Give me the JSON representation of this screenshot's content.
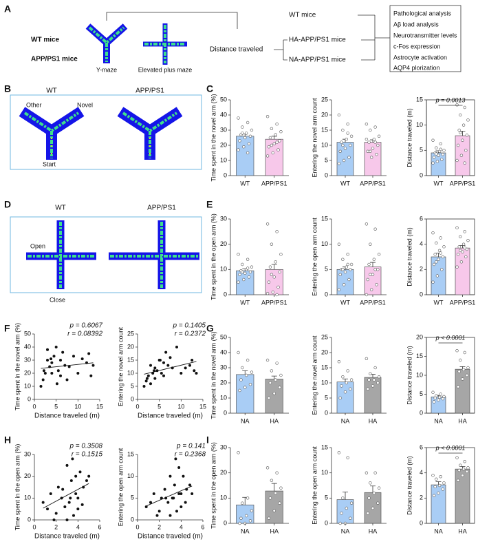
{
  "panel_labels": [
    "A",
    "B",
    "C",
    "D",
    "E",
    "F",
    "G",
    "H",
    "I"
  ],
  "diagram": {
    "mouse_groups": [
      "WT mice",
      "APP/PS1 mice"
    ],
    "tests": [
      "Y-maze",
      "Elevated plus maze"
    ],
    "measure": "Distance traveled",
    "subgroups": [
      "WT mice",
      "HA-APP/PS1 mice",
      "NA-APP/PS1 mice"
    ],
    "analyses": [
      "Pathological analysis",
      "Aβ load analysis",
      "Neurotransmitter levels",
      "c-Fos expression",
      "Astrocyte activation",
      "AQP4 plorization"
    ]
  },
  "heatmaps": {
    "B": {
      "groups": [
        "WT",
        "APP/PS1"
      ],
      "arms": [
        "Other",
        "Novel",
        "Start"
      ]
    },
    "D": {
      "groups": [
        "WT",
        "APP/PS1"
      ],
      "arms": [
        "Open",
        "Close"
      ]
    }
  },
  "chart_data": [
    {
      "type": "bar",
      "ylabel": "Time spent in the novel arm (%)",
      "categories": [
        "WT",
        "APP/PS1"
      ],
      "colors": [
        "#a9cdf5",
        "#f7c8ea"
      ],
      "values": [
        26,
        24
      ],
      "errors": [
        1.5,
        2
      ],
      "ylim": [
        0,
        50
      ],
      "yticks": [
        0,
        10,
        20,
        30,
        40,
        50
      ],
      "points": [
        [
          38,
          35,
          32,
          30,
          28,
          27,
          26,
          25,
          23,
          21,
          19,
          17,
          15,
          28
        ],
        [
          39,
          34,
          31,
          29,
          27,
          25,
          23,
          21,
          19,
          17,
          15,
          13,
          22,
          20
        ]
      ]
    },
    {
      "type": "bar",
      "ylabel": "Entering the novel arm count",
      "categories": [
        "WT",
        "APP/PS1"
      ],
      "colors": [
        "#a9cdf5",
        "#f7c8ea"
      ],
      "values": [
        11,
        11
      ],
      "errors": [
        1,
        0.8
      ],
      "ylim": [
        0,
        25
      ],
      "yticks": [
        0,
        5,
        10,
        15,
        20,
        25
      ],
      "points": [
        [
          20,
          17,
          15,
          13,
          12,
          11,
          10,
          9,
          8,
          6,
          5,
          4,
          14,
          10
        ],
        [
          17,
          16,
          15,
          13,
          12,
          11,
          10,
          9,
          8,
          7,
          6,
          12,
          11,
          8
        ]
      ]
    },
    {
      "type": "bar",
      "ylabel": "Distance traveled (m)",
      "categories": [
        "WT",
        "APP/PS1"
      ],
      "colors": [
        "#a9cdf5",
        "#f7c8ea"
      ],
      "values": [
        4.5,
        7.9
      ],
      "errors": [
        0.4,
        0.9
      ],
      "ylim": [
        0,
        15
      ],
      "yticks": [
        0,
        5,
        10,
        15
      ],
      "frame": true,
      "annotation": "p = 0.0013",
      "points": [
        [
          7,
          6.3,
          5.5,
          5,
          4.8,
          4.5,
          4.2,
          4,
          3.6,
          3.2,
          2.8,
          2.5,
          5.2,
          4.3
        ],
        [
          14,
          13.5,
          12,
          11,
          10,
          9,
          8,
          7,
          6,
          5,
          4,
          3,
          2.5,
          8.5
        ]
      ]
    },
    {
      "type": "bar",
      "ylabel": "Time spent in the open arm (%)",
      "categories": [
        "WT",
        "APP/PS1"
      ],
      "colors": [
        "#a9cdf5",
        "#f7c8ea"
      ],
      "values": [
        9.5,
        10
      ],
      "errors": [
        0.8,
        2
      ],
      "ylim": [
        0,
        30
      ],
      "yticks": [
        0,
        10,
        20,
        30
      ],
      "points": [
        [
          16,
          14,
          12,
          11,
          10,
          9.5,
          9,
          8.5,
          8,
          7,
          6,
          5,
          10.5,
          9
        ],
        [
          28,
          25,
          20,
          16,
          13,
          11,
          9,
          7,
          5,
          3,
          1,
          0.5,
          0,
          8
        ]
      ]
    },
    {
      "type": "bar",
      "ylabel": "Entering the open arm count",
      "categories": [
        "WT",
        "APP/PS1"
      ],
      "colors": [
        "#a9cdf5",
        "#f7c8ea"
      ],
      "values": [
        5,
        5.5
      ],
      "errors": [
        0.5,
        0.9
      ],
      "ylim": [
        0,
        15
      ],
      "yticks": [
        0,
        5,
        10,
        15
      ],
      "points": [
        [
          10,
          8,
          7,
          6,
          5.5,
          5,
          5,
          4.5,
          4,
          3,
          2,
          1,
          6,
          5
        ],
        [
          14,
          13,
          10,
          8,
          7,
          6,
          5,
          4,
          3,
          2,
          1,
          0,
          5,
          4
        ]
      ]
    },
    {
      "type": "bar",
      "ylabel": "Distance traveled (m)",
      "categories": [
        "WT",
        "APP/PS1"
      ],
      "colors": [
        "#a9cdf5",
        "#f7c8ea"
      ],
      "values": [
        3,
        3.7
      ],
      "errors": [
        0.3,
        0.2
      ],
      "ylim": [
        0,
        6
      ],
      "yticks": [
        0,
        2,
        4,
        6
      ],
      "frame": true,
      "points": [
        [
          4.9,
          4.5,
          4.1,
          3.8,
          3.5,
          3.2,
          3,
          2.8,
          2.4,
          2,
          1.5,
          1,
          3.3,
          2.6
        ],
        [
          5.3,
          5,
          4.6,
          4.3,
          4,
          3.8,
          3.6,
          3.4,
          3.2,
          3,
          2.6,
          2.2,
          3.7,
          3.5
        ]
      ]
    },
    {
      "type": "scatter",
      "xlabel": "Distance traveled (m)",
      "ylabel": "Time spent in the novel arm (%)",
      "annotations": [
        "p = 0.6067",
        "r = 0.08392"
      ],
      "xlim": [
        0,
        15
      ],
      "xticks": [
        0,
        5,
        10,
        15
      ],
      "ylim": [
        0,
        50
      ],
      "yticks": [
        0,
        10,
        20,
        30,
        40,
        50
      ],
      "x": [
        1.5,
        2,
        2.5,
        3,
        3,
        3.5,
        4,
        4,
        4.5,
        5,
        5.5,
        6,
        6,
        6.5,
        7,
        7.5,
        8,
        9,
        10,
        11,
        12,
        12.5,
        13,
        13.5,
        2.2,
        3.8,
        5.2
      ],
      "y": [
        10,
        15,
        20,
        30,
        38,
        25,
        20,
        28,
        33,
        40,
        22,
        30,
        18,
        36,
        26,
        15,
        25,
        33,
        20,
        31,
        28,
        35,
        18,
        26,
        22,
        31,
        12
      ]
    },
    {
      "type": "scatter",
      "xlabel": "Distance traveled (m)",
      "ylabel": "Entering the novel arm count",
      "annotations": [
        "p = 0.1405",
        "r = 0.2372"
      ],
      "xlim": [
        0,
        15
      ],
      "xticks": [
        0,
        5,
        10,
        15
      ],
      "ylim": [
        0,
        25
      ],
      "yticks": [
        0,
        5,
        10,
        15,
        20,
        25
      ],
      "x": [
        1.5,
        2,
        2.5,
        3,
        3,
        3.5,
        4,
        4,
        4.5,
        5,
        5.5,
        6,
        6,
        6.5,
        7,
        7.5,
        8,
        9,
        10,
        11,
        12,
        12.5,
        13,
        13.5,
        2.2,
        3.8,
        5.2
      ],
      "y": [
        5,
        7,
        9,
        13,
        6,
        10,
        8,
        12,
        11,
        15,
        10,
        14,
        9,
        18,
        13,
        16,
        12,
        20,
        10,
        12,
        13,
        15,
        11,
        10,
        8,
        11,
        15
      ]
    },
    {
      "type": "bar",
      "ylabel": "Time spent in the novel arm (%)",
      "categories": [
        "NA",
        "HA"
      ],
      "colors": [
        "#a9cdf5",
        "#a6a6a6"
      ],
      "values": [
        25.5,
        22.5
      ],
      "errors": [
        2.5,
        2
      ],
      "ylim": [
        0,
        50
      ],
      "yticks": [
        0,
        10,
        20,
        30,
        40,
        50
      ],
      "points": [
        [
          40,
          35,
          30,
          27,
          25,
          22,
          19,
          17,
          15
        ],
        [
          35,
          33,
          28,
          25,
          22,
          20,
          17,
          13,
          10
        ]
      ]
    },
    {
      "type": "bar",
      "ylabel": "Entering the novel arm count",
      "categories": [
        "NA",
        "HA"
      ],
      "colors": [
        "#a9cdf5",
        "#a6a6a6"
      ],
      "values": [
        10.3,
        11.8
      ],
      "errors": [
        1,
        1
      ],
      "ylim": [
        0,
        25
      ],
      "yticks": [
        0,
        5,
        10,
        15,
        20,
        25
      ],
      "points": [
        [
          17,
          14,
          12,
          11,
          10,
          9,
          8,
          7,
          5
        ],
        [
          18,
          15,
          13,
          12,
          11,
          11,
          10,
          9,
          8
        ]
      ]
    },
    {
      "type": "bar",
      "ylabel": "Distance traveled (m)",
      "categories": [
        "NA",
        "HA"
      ],
      "colors": [
        "#a9cdf5",
        "#a6a6a6"
      ],
      "values": [
        4.3,
        11.6
      ],
      "errors": [
        0.4,
        0.7
      ],
      "ylim": [
        0,
        20
      ],
      "yticks": [
        0,
        5,
        10,
        15,
        20
      ],
      "frame": true,
      "annotation": "p < 0.0001",
      "points": [
        [
          5.5,
          5,
          4.6,
          4.4,
          4.2,
          4,
          3.8,
          3.5,
          3
        ],
        [
          16.5,
          16,
          14,
          12,
          11.5,
          11,
          10,
          9,
          7
        ]
      ]
    },
    {
      "type": "scatter",
      "xlabel": "Distance traveled (m)",
      "ylabel": "Time spent in the open arm (%)",
      "annotations": [
        "p = 0.3508",
        "r = 0.1515"
      ],
      "xlim": [
        0,
        6
      ],
      "xticks": [
        0,
        2,
        4,
        6
      ],
      "ylim": [
        0,
        30
      ],
      "yticks": [
        0,
        10,
        20,
        30
      ],
      "x": [
        0.8,
        1.2,
        1.5,
        2,
        2.2,
        2.5,
        2.8,
        3,
        3,
        3.2,
        3.4,
        3.5,
        3.6,
        3.8,
        3.8,
        4,
        4,
        4.2,
        4.4,
        4.5,
        4.8,
        5,
        1.8,
        2.6,
        3.3
      ],
      "y": [
        8,
        5,
        12,
        3,
        15,
        10,
        6,
        25,
        0,
        8,
        18,
        28,
        2,
        12,
        20,
        5,
        10,
        22,
        7,
        15,
        18,
        20,
        0,
        14,
        10
      ]
    },
    {
      "type": "scatter",
      "xlabel": "Distance traveled (m)",
      "ylabel": "Entering the open arm count",
      "annotations": [
        "p = 0.141",
        "r = 0.2368"
      ],
      "xlim": [
        0,
        6
      ],
      "xticks": [
        0,
        2,
        4,
        6
      ],
      "ylim": [
        0,
        15
      ],
      "yticks": [
        0,
        5,
        10,
        15
      ],
      "x": [
        0.8,
        1.2,
        1.5,
        2,
        2.2,
        2.5,
        2.8,
        3,
        3,
        3.2,
        3.4,
        3.5,
        3.6,
        3.8,
        3.8,
        4,
        4,
        4.2,
        4.4,
        4.5,
        4.8,
        5,
        1.8,
        2.6,
        3.3
      ],
      "y": [
        3,
        4,
        6,
        2,
        5,
        7,
        4,
        10,
        1,
        5,
        8,
        14,
        2,
        6,
        12,
        3,
        6,
        10,
        4,
        7,
        8,
        6,
        1,
        5,
        5
      ]
    },
    {
      "type": "bar",
      "ylabel": "Time spent in the open arm (%)",
      "categories": [
        "NA",
        "HA"
      ],
      "colors": [
        "#a9cdf5",
        "#a6a6a6"
      ],
      "values": [
        7.3,
        12.8
      ],
      "errors": [
        3,
        3
      ],
      "ylim": [
        0,
        30
      ],
      "yticks": [
        0,
        10,
        20,
        30
      ],
      "points": [
        [
          28,
          10,
          8,
          5,
          3,
          2,
          1,
          0,
          0
        ],
        [
          22,
          20,
          17,
          14,
          12,
          10,
          8,
          5,
          2
        ]
      ]
    },
    {
      "type": "bar",
      "ylabel": "Entering the open arm count",
      "categories": [
        "NA",
        "HA"
      ],
      "colors": [
        "#a9cdf5",
        "#a6a6a6"
      ],
      "values": [
        4.7,
        6.1
      ],
      "errors": [
        1.5,
        1.3
      ],
      "ylim": [
        0,
        15
      ],
      "yticks": [
        0,
        5,
        10,
        15
      ],
      "points": [
        [
          14,
          13,
          5,
          4,
          3,
          2,
          1,
          0,
          0
        ],
        [
          10,
          10,
          8,
          7,
          6,
          5,
          4,
          3,
          2
        ]
      ]
    },
    {
      "type": "bar",
      "ylabel": "Distance traveled (m)",
      "categories": [
        "NA",
        "HA"
      ],
      "colors": [
        "#a9cdf5",
        "#a6a6a6"
      ],
      "values": [
        3.05,
        4.3
      ],
      "errors": [
        0.25,
        0.2
      ],
      "ylim": [
        0,
        6
      ],
      "yticks": [
        0,
        2,
        4,
        6
      ],
      "frame": true,
      "annotation": "p < 0.0001",
      "points": [
        [
          3.8,
          3.7,
          3.5,
          3.2,
          3,
          2.9,
          2.7,
          2.4,
          2.2
        ],
        [
          5.2,
          4.9,
          4.6,
          4.4,
          4.3,
          4.2,
          4.1,
          3.8,
          3.4
        ]
      ]
    }
  ]
}
